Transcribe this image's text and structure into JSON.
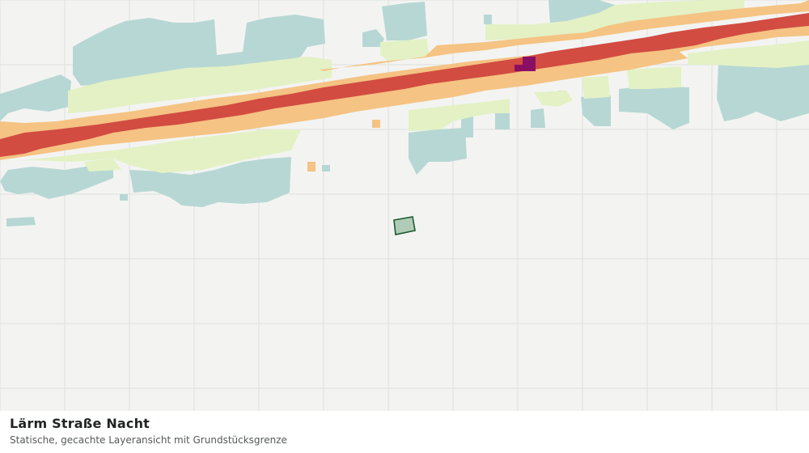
{
  "layer": {
    "title": "Lärm Straße Nacht",
    "subtitle": "Statische, gecachte Layeransicht mit Grundstücksgrenze"
  },
  "colors": {
    "background": "#f3f4f2",
    "grid": "#dfe1de",
    "zone_lowest": "#b7d7d4",
    "zone_low": "#e3f1c5",
    "zone_mid": "#f5c383",
    "zone_high": "#d24c42",
    "zone_highest": "#8a0f63",
    "parcel_fill": "#b0ccb8",
    "parcel_stroke": "#1b5a30"
  }
}
